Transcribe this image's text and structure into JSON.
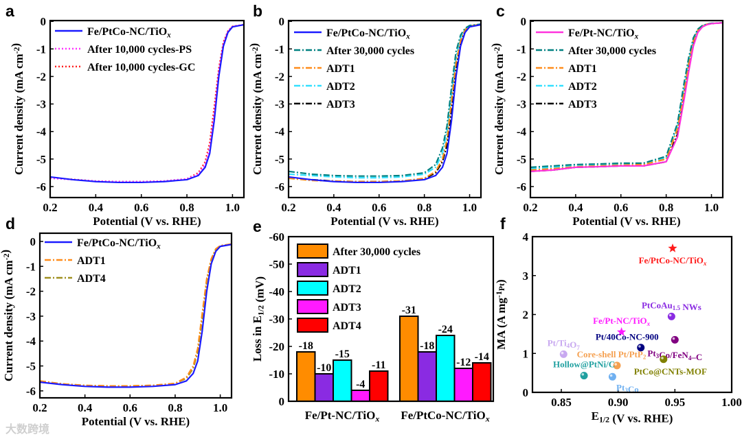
{
  "watermark": "大数跨境",
  "chart_data": [
    {
      "panel": "a",
      "type": "line",
      "xlabel": [
        "Potential (V vs. RHE)"
      ],
      "ylabel": [
        "Current density (mA cm",
        "^-2",
        ")"
      ],
      "xlim": [
        0.2,
        1.05
      ],
      "ylim": [
        -6.4,
        0.03
      ],
      "xticks": [
        0.2,
        0.4,
        0.6,
        0.8,
        1.0
      ],
      "yticks": [
        -6,
        -5,
        -4,
        -3,
        -2,
        -1,
        0
      ],
      "x": [
        0.2,
        0.3,
        0.4,
        0.5,
        0.6,
        0.7,
        0.8,
        0.85,
        0.88,
        0.9,
        0.92,
        0.94,
        0.96,
        0.98,
        1.0,
        1.05
      ],
      "series": [
        {
          "name": [
            "Fe/PtCo-NC/TiO",
            "_x"
          ],
          "color": "#1a1aff",
          "style": "solid",
          "values": [
            -5.65,
            -5.75,
            -5.82,
            -5.85,
            -5.85,
            -5.82,
            -5.75,
            -5.6,
            -5.3,
            -4.8,
            -3.6,
            -2.0,
            -0.9,
            -0.4,
            -0.2,
            -0.12
          ]
        },
        {
          "name": [
            "After 10,000 cycles-PS"
          ],
          "color": "#ff33ff",
          "style": "dot",
          "values": [
            -5.7,
            -5.75,
            -5.8,
            -5.82,
            -5.82,
            -5.8,
            -5.72,
            -5.55,
            -5.2,
            -4.6,
            -3.3,
            -1.8,
            -0.8,
            -0.35,
            -0.18,
            -0.12
          ]
        },
        {
          "name": [
            "After 10,000 cycles-GC"
          ],
          "color": "#ff2020",
          "style": "dot",
          "values": [
            -5.68,
            -5.74,
            -5.8,
            -5.82,
            -5.82,
            -5.8,
            -5.72,
            -5.5,
            -5.1,
            -4.4,
            -3.1,
            -1.7,
            -0.75,
            -0.35,
            -0.18,
            -0.12
          ]
        }
      ]
    },
    {
      "panel": "b",
      "type": "line",
      "xlabel": [
        "Potential (V vs. RHE)"
      ],
      "ylabel": [
        "Current density (mA cm",
        "^-2",
        ")"
      ],
      "xlim": [
        0.2,
        1.05
      ],
      "ylim": [
        -6.4,
        0.03
      ],
      "xticks": [
        0.2,
        0.4,
        0.6,
        0.8,
        1.0
      ],
      "yticks": [
        -6,
        -5,
        -4,
        -3,
        -2,
        -1,
        0
      ],
      "x": [
        0.2,
        0.3,
        0.4,
        0.5,
        0.6,
        0.7,
        0.8,
        0.85,
        0.88,
        0.9,
        0.92,
        0.94,
        0.96,
        0.98,
        1.0,
        1.05
      ],
      "series": [
        {
          "name": [
            "Fe/PtCo-NC/TiO",
            "_x"
          ],
          "color": "#1a1aff",
          "style": "solid",
          "values": [
            -5.65,
            -5.75,
            -5.82,
            -5.85,
            -5.85,
            -5.82,
            -5.75,
            -5.6,
            -5.3,
            -4.8,
            -3.6,
            -2.0,
            -0.9,
            -0.4,
            -0.2,
            -0.12
          ]
        },
        {
          "name": [
            "After 30,000 cycles"
          ],
          "color": "#008080",
          "style": "dashdot",
          "values": [
            -5.45,
            -5.55,
            -5.6,
            -5.62,
            -5.62,
            -5.6,
            -5.5,
            -5.2,
            -4.6,
            -3.8,
            -2.4,
            -1.1,
            -0.5,
            -0.25,
            -0.15,
            -0.1
          ]
        },
        {
          "name": [
            "ADT1"
          ],
          "color": "#ff8c1a",
          "style": "dashdot",
          "values": [
            -5.7,
            -5.78,
            -5.8,
            -5.82,
            -5.82,
            -5.8,
            -5.7,
            -5.45,
            -5.0,
            -4.3,
            -2.9,
            -1.5,
            -0.7,
            -0.3,
            -0.17,
            -0.1
          ]
        },
        {
          "name": [
            "ADT2"
          ],
          "color": "#33e0ff",
          "style": "dashdot",
          "values": [
            -5.55,
            -5.6,
            -5.65,
            -5.68,
            -5.68,
            -5.65,
            -5.55,
            -5.3,
            -4.8,
            -4.0,
            -2.6,
            -1.3,
            -0.6,
            -0.28,
            -0.16,
            -0.1
          ]
        },
        {
          "name": [
            "ADT3"
          ],
          "color": "#000000",
          "style": "dashdot",
          "values": [
            -5.68,
            -5.75,
            -5.8,
            -5.82,
            -5.82,
            -5.8,
            -5.72,
            -5.5,
            -5.1,
            -4.5,
            -3.2,
            -1.7,
            -0.8,
            -0.35,
            -0.18,
            -0.12
          ]
        }
      ]
    },
    {
      "panel": "c",
      "type": "line",
      "xlabel": [
        "Potential (V vs. RHE)"
      ],
      "ylabel": [
        "Current density (mA cm",
        "^-2",
        ")"
      ],
      "xlim": [
        0.2,
        1.05
      ],
      "ylim": [
        -6.4,
        0.03
      ],
      "xticks": [
        0.2,
        0.4,
        0.6,
        0.8,
        1.0
      ],
      "yticks": [
        -6,
        -5,
        -4,
        -3,
        -2,
        -1,
        0
      ],
      "x": [
        0.2,
        0.3,
        0.4,
        0.5,
        0.6,
        0.7,
        0.8,
        0.85,
        0.88,
        0.9,
        0.92,
        0.94,
        0.96,
        0.98,
        1.0,
        1.05
      ],
      "series": [
        {
          "name": [
            "Fe/Pt-NC/TiO",
            "_x"
          ],
          "color": "#ff33dd",
          "style": "solid",
          "values": [
            -5.45,
            -5.4,
            -5.3,
            -5.28,
            -5.25,
            -5.25,
            -5.1,
            -4.2,
            -2.8,
            -1.8,
            -0.9,
            -0.4,
            -0.2,
            -0.12,
            -0.08,
            -0.05
          ]
        },
        {
          "name": [
            "After 30,000 cycles"
          ],
          "color": "#008080",
          "style": "dashdot",
          "values": [
            -5.3,
            -5.25,
            -5.2,
            -5.18,
            -5.15,
            -5.15,
            -4.9,
            -3.7,
            -2.2,
            -1.3,
            -0.6,
            -0.28,
            -0.15,
            -0.1,
            -0.07,
            -0.05
          ]
        },
        {
          "name": [
            "ADT1"
          ],
          "color": "#ff8c1a",
          "style": "dashdot",
          "values": [
            -5.4,
            -5.35,
            -5.28,
            -5.25,
            -5.22,
            -5.2,
            -5.0,
            -3.9,
            -2.5,
            -1.5,
            -0.7,
            -0.32,
            -0.17,
            -0.1,
            -0.07,
            -0.05
          ]
        },
        {
          "name": [
            "ADT2"
          ],
          "color": "#33e0ff",
          "style": "dashdot",
          "values": [
            -5.35,
            -5.3,
            -5.22,
            -5.2,
            -5.18,
            -5.17,
            -4.95,
            -3.8,
            -2.35,
            -1.4,
            -0.65,
            -0.3,
            -0.16,
            -0.1,
            -0.07,
            -0.05
          ]
        },
        {
          "name": [
            "ADT3"
          ],
          "color": "#000000",
          "style": "dashdot",
          "values": [
            -5.45,
            -5.4,
            -5.3,
            -5.28,
            -5.25,
            -5.25,
            -5.1,
            -4.1,
            -2.7,
            -1.7,
            -0.85,
            -0.38,
            -0.19,
            -0.11,
            -0.08,
            -0.05
          ]
        }
      ]
    },
    {
      "panel": "d",
      "type": "line",
      "xlabel": [
        "Potential (V vs. RHE)"
      ],
      "ylabel": [
        "Current density (mA cm",
        "^-2",
        ")"
      ],
      "xlim": [
        0.2,
        1.05
      ],
      "ylim": [
        -6.28,
        0.33
      ],
      "xticks": [
        0.2,
        0.4,
        0.6,
        0.8,
        1.0
      ],
      "yticks": [
        -6,
        -5,
        -4,
        -3,
        -2,
        -1,
        0
      ],
      "x": [
        0.2,
        0.3,
        0.4,
        0.5,
        0.6,
        0.7,
        0.8,
        0.85,
        0.88,
        0.9,
        0.92,
        0.94,
        0.96,
        0.98,
        1.0,
        1.05
      ],
      "series": [
        {
          "name": [
            "Fe/PtCo-NC/TiO",
            "_x"
          ],
          "color": "#1a1aff",
          "style": "solid",
          "values": [
            -5.65,
            -5.75,
            -5.82,
            -5.85,
            -5.85,
            -5.82,
            -5.75,
            -5.6,
            -5.3,
            -4.8,
            -3.6,
            -2.0,
            -0.9,
            -0.4,
            -0.2,
            -0.12
          ]
        },
        {
          "name": [
            "ADT1"
          ],
          "color": "#ff8c1a",
          "style": "dashdot",
          "values": [
            -5.6,
            -5.72,
            -5.78,
            -5.8,
            -5.8,
            -5.78,
            -5.7,
            -5.45,
            -5.0,
            -4.3,
            -2.9,
            -1.5,
            -0.7,
            -0.3,
            -0.17,
            -0.1
          ]
        },
        {
          "name": [
            "ADT4"
          ],
          "color": "#a09020",
          "style": "dashdot",
          "values": [
            -5.62,
            -5.72,
            -5.78,
            -5.8,
            -5.8,
            -5.78,
            -5.7,
            -5.5,
            -5.1,
            -4.45,
            -3.1,
            -1.6,
            -0.75,
            -0.32,
            -0.18,
            -0.11
          ]
        }
      ]
    },
    {
      "panel": "e",
      "type": "bar",
      "ylabel": [
        "Loss in E",
        "_1/2",
        " (mV)"
      ],
      "ylim": [
        0,
        -60
      ],
      "yticks": [
        0,
        -10,
        -20,
        -30,
        -40,
        -50,
        -60
      ],
      "categories": [
        [
          "Fe/Pt-NC/TiO",
          "_x"
        ],
        [
          "Fe/PtCo-NC/TiO",
          "_x"
        ]
      ],
      "series": [
        {
          "name": [
            "After 30,000 cycles"
          ],
          "color": "#ff8c00",
          "values": [
            -18,
            -31
          ]
        },
        {
          "name": [
            "ADT1"
          ],
          "color": "#8a2be2",
          "values": [
            -10,
            -18
          ]
        },
        {
          "name": [
            "ADT2"
          ],
          "color": "#00ffff",
          "values": [
            -15,
            -24
          ]
        },
        {
          "name": [
            "ADT3"
          ],
          "color": "#ff1aff",
          "values": [
            -4,
            -12
          ]
        },
        {
          "name": [
            "ADT4"
          ],
          "color": "#ff0000",
          "values": [
            -11,
            -14
          ]
        }
      ]
    },
    {
      "panel": "f",
      "type": "scatter",
      "xlabel": [
        "E",
        "_1/2",
        " (V vs. RHE)"
      ],
      "ylabel": [
        "MA (A mg",
        "^-1",
        "_Pt",
        ")"
      ],
      "xlim": [
        0.8246,
        1.0
      ],
      "ylim": [
        0,
        4
      ],
      "xticks": [
        0.85,
        0.9,
        0.95,
        1.0
      ],
      "yticks": [
        0,
        1,
        2,
        3,
        4
      ],
      "points": [
        {
          "label": [
            "Fe/PtCo-NC/TiO",
            "_x"
          ],
          "x": 0.948,
          "y": 3.7,
          "marker": "star",
          "color": "#ff1a1a",
          "anchor": "below"
        },
        {
          "label": [
            "Fe/Pt-NC/TiO",
            "_x"
          ],
          "x": 0.903,
          "y": 1.55,
          "marker": "star",
          "color": "#ff1aff",
          "anchor": "above"
        },
        {
          "label": [
            "PtCoAu",
            "_1.5",
            " NWs"
          ],
          "x": 0.947,
          "y": 1.95,
          "marker": "ball",
          "color": "#8a2be2",
          "anchor": "above"
        },
        {
          "label": [
            "Pt/40Co-NC-900"
          ],
          "x": 0.92,
          "y": 1.15,
          "marker": "ball",
          "color": "#000080",
          "anchor": "above-left"
        },
        {
          "label": [
            "Pt",
            "_3",
            "Co/FeN",
            "_4",
            "–C"
          ],
          "x": 0.95,
          "y": 1.35,
          "marker": "ball",
          "color": "#800080",
          "anchor": "below-right"
        },
        {
          "label": [
            "PtCo@CNTs-MOF"
          ],
          "x": 0.94,
          "y": 0.85,
          "marker": "ball",
          "color": "#808000",
          "anchor": "below-right2"
        },
        {
          "label": [
            "Pt/Ti",
            "_4",
            "O",
            "_7"
          ],
          "x": 0.852,
          "y": 0.98,
          "marker": "ball",
          "color": "#c8a8f0",
          "anchor": "above"
        },
        {
          "label": [
            "Core-shell Pt/PtP",
            "_2"
          ],
          "x": 0.899,
          "y": 0.69,
          "marker": "ball",
          "color": "#f5a050",
          "anchor": "above-left2"
        },
        {
          "label": [
            "Hollow@PtNi/C"
          ],
          "x": 0.87,
          "y": 0.43,
          "marker": "ball",
          "color": "#20a0a0",
          "anchor": "above-c"
        },
        {
          "label": [
            "Pt",
            "_3",
            "Co"
          ],
          "x": 0.895,
          "y": 0.4,
          "marker": "ball",
          "color": "#6fb0f0",
          "anchor": "below-r"
        }
      ]
    }
  ]
}
